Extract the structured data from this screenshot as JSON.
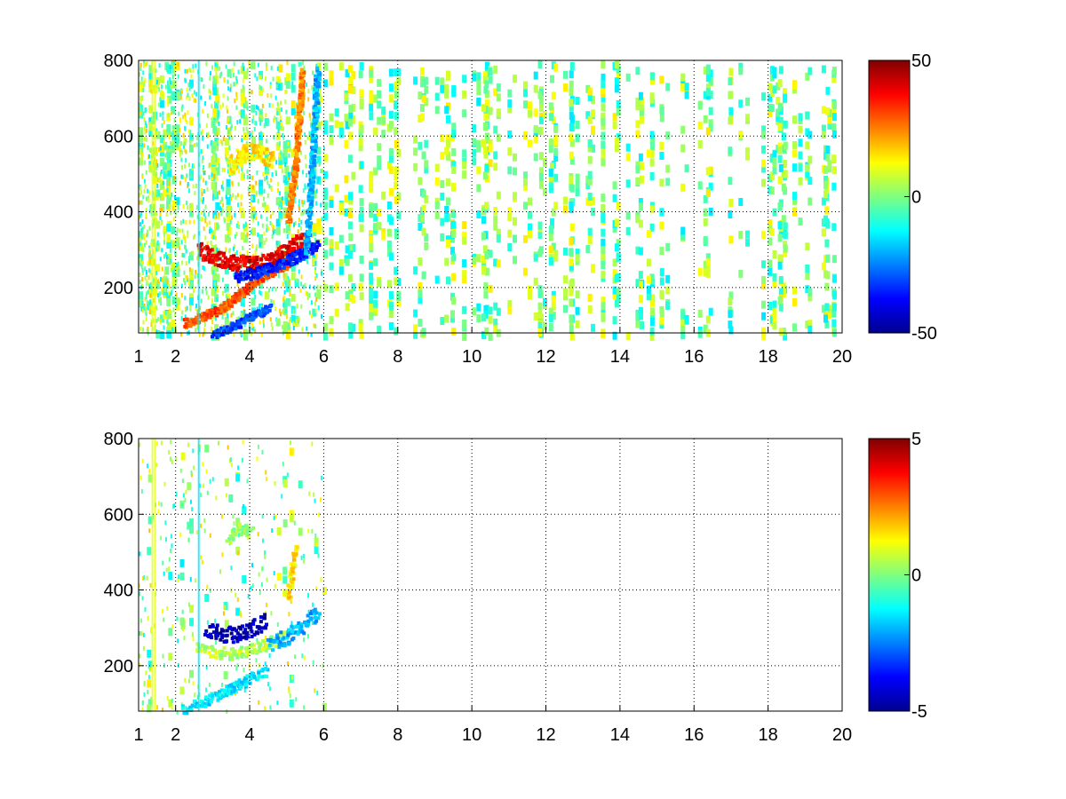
{
  "chart_data": [
    {
      "type": "heatmap",
      "title": "",
      "xlabel": "",
      "ylabel": "",
      "xlim": [
        1,
        20
      ],
      "ylim": [
        80,
        800
      ],
      "x_ticks": [
        1,
        2,
        4,
        6,
        8,
        10,
        12,
        14,
        16,
        18,
        20
      ],
      "y_ticks": [
        200,
        400,
        600,
        800
      ],
      "grid": true,
      "colorbar": {
        "min": -50,
        "max": 50,
        "ticks": [
          -50,
          0,
          50
        ],
        "colormap": "jet"
      },
      "features": [
        {
          "kind": "band",
          "value": 30,
          "width": 22,
          "points": [
            [
              2.2,
              110
            ],
            [
              2.8,
              130
            ],
            [
              3.4,
              160
            ],
            [
              4.0,
              210
            ],
            [
              4.6,
              250
            ],
            [
              5.0,
              265
            ]
          ]
        },
        {
          "kind": "band",
          "value": 40,
          "width": 40,
          "points": [
            [
              2.6,
              300
            ],
            [
              3.0,
              280
            ],
            [
              3.5,
              270
            ],
            [
              4.0,
              265
            ],
            [
              4.5,
              275
            ],
            [
              5.0,
              300
            ],
            [
              5.4,
              330
            ]
          ]
        },
        {
          "kind": "band",
          "value": -35,
          "width": 30,
          "points": [
            [
              3.6,
              230
            ],
            [
              4.2,
              245
            ],
            [
              4.8,
              265
            ],
            [
              5.3,
              290
            ],
            [
              5.8,
              315
            ]
          ]
        },
        {
          "kind": "band",
          "value": -30,
          "width": 20,
          "points": [
            [
              3.0,
              80
            ],
            [
              3.5,
              100
            ],
            [
              4.0,
              125
            ],
            [
              4.5,
              150
            ]
          ]
        },
        {
          "kind": "band",
          "value": 15,
          "width": 45,
          "points": [
            [
              3.4,
              520
            ],
            [
              3.8,
              560
            ],
            [
              4.2,
              560
            ],
            [
              4.6,
              540
            ]
          ]
        },
        {
          "kind": "band",
          "value": 25,
          "width": 18,
          "points": [
            [
              5.0,
              380
            ],
            [
              5.2,
              520
            ],
            [
              5.3,
              650
            ],
            [
              5.4,
              780
            ]
          ]
        },
        {
          "kind": "band",
          "value": -20,
          "width": 14,
          "points": [
            [
              5.5,
              300
            ],
            [
              5.6,
              450
            ],
            [
              5.7,
              600
            ],
            [
              5.8,
              780
            ]
          ]
        }
      ]
    },
    {
      "type": "heatmap",
      "title": "",
      "xlabel": "",
      "ylabel": "",
      "xlim": [
        1,
        20
      ],
      "ylim": [
        80,
        800
      ],
      "x_ticks": [
        1,
        2,
        4,
        6,
        8,
        10,
        12,
        14,
        16,
        18,
        20
      ],
      "y_ticks": [
        200,
        400,
        600,
        800
      ],
      "grid": true,
      "colorbar": {
        "min": -5,
        "max": 5,
        "ticks": [
          -5,
          0,
          5
        ],
        "colormap": "jet"
      },
      "features": [
        {
          "kind": "band",
          "value": -1.5,
          "width": 25,
          "points": [
            [
              2.2,
              90
            ],
            [
              2.8,
              110
            ],
            [
              3.4,
              140
            ],
            [
              4.0,
              170
            ],
            [
              4.4,
              190
            ]
          ]
        },
        {
          "kind": "band",
          "value": 0.5,
          "width": 30,
          "points": [
            [
              2.6,
              250
            ],
            [
              3.0,
              240
            ],
            [
              3.5,
              235
            ],
            [
              4.0,
              245
            ],
            [
              4.5,
              265
            ],
            [
              5.0,
              285
            ]
          ]
        },
        {
          "kind": "band",
          "value": -4.5,
          "width": 45,
          "points": [
            [
              2.8,
              300
            ],
            [
              3.2,
              290
            ],
            [
              3.6,
              280
            ],
            [
              4.0,
              300
            ],
            [
              4.4,
              320
            ]
          ]
        },
        {
          "kind": "band",
          "value": -2.0,
          "width": 40,
          "points": [
            [
              4.5,
              260
            ],
            [
              5.0,
              280
            ],
            [
              5.4,
              310
            ],
            [
              5.8,
              340
            ]
          ]
        },
        {
          "kind": "band",
          "value": 0.3,
          "width": 30,
          "points": [
            [
              3.4,
              540
            ],
            [
              3.7,
              565
            ],
            [
              4.0,
              555
            ]
          ]
        },
        {
          "kind": "band",
          "value": 1.5,
          "width": 14,
          "points": [
            [
              5.0,
              380
            ],
            [
              5.1,
              450
            ],
            [
              5.2,
              520
            ]
          ]
        }
      ]
    }
  ]
}
